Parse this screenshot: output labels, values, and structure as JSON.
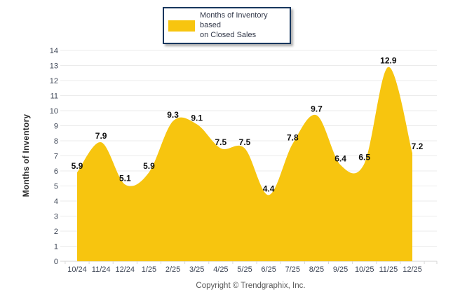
{
  "legend": {
    "lines": [
      "Months of Inventory based",
      "on Closed Sales"
    ]
  },
  "footer": {
    "copyright": "Copyright © Trendgraphix, Inc."
  },
  "colors": {
    "area": "#F7C50F",
    "grid": "#EBEBEB",
    "axis": "#D6D6D6",
    "tick-text": "#3E4656",
    "label-text": "#111111",
    "legend-border": "#17365D",
    "copyright-text": "#595959"
  },
  "chart_data": {
    "type": "area",
    "title": "Months of Inventory based on Closed Sales",
    "categories": [
      "10/24",
      "11/24",
      "12/24",
      "1/25",
      "2/25",
      "3/25",
      "4/25",
      "5/25",
      "6/25",
      "7/25",
      "8/25",
      "9/25",
      "10/25",
      "11/25",
      "12/25"
    ],
    "values": [
      5.9,
      7.9,
      5.1,
      5.9,
      9.3,
      9.1,
      7.5,
      7.5,
      4.4,
      7.8,
      9.7,
      6.4,
      6.5,
      12.9,
      7.2
    ],
    "xlabel": "",
    "ylabel": "Months of Inventory",
    "ylim": [
      0,
      14
    ],
    "ytick_step": 1,
    "grid": true,
    "legend_position": "top-center",
    "data_labels": true
  }
}
